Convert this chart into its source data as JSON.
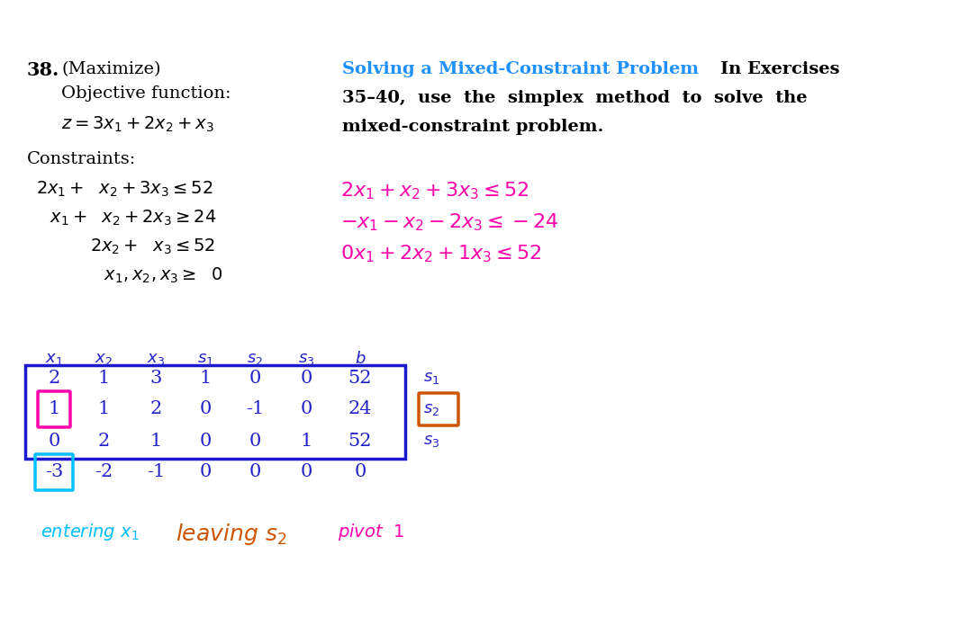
{
  "bg_color": "#ffffff",
  "black": "#000000",
  "blue": "#2222CC",
  "dark_blue": "#1a1aCC",
  "pink": "#FF00AA",
  "orange": "#CC5500",
  "cyan": "#00BFFF",
  "header_blue": "#1E90FF",
  "col_headers": [
    "x_1",
    "x_2",
    "x_3",
    "s_1",
    "s_2",
    "s_3",
    "b"
  ],
  "matrix_data": [
    [
      2,
      1,
      3,
      1,
      0,
      0,
      52
    ],
    [
      1,
      1,
      2,
      0,
      -1,
      0,
      24
    ],
    [
      0,
      2,
      1,
      0,
      0,
      1,
      52
    ],
    [
      -3,
      -2,
      -1,
      0,
      0,
      0,
      0
    ]
  ],
  "row_labels": [
    "s_1",
    "s_2",
    "s_3"
  ]
}
